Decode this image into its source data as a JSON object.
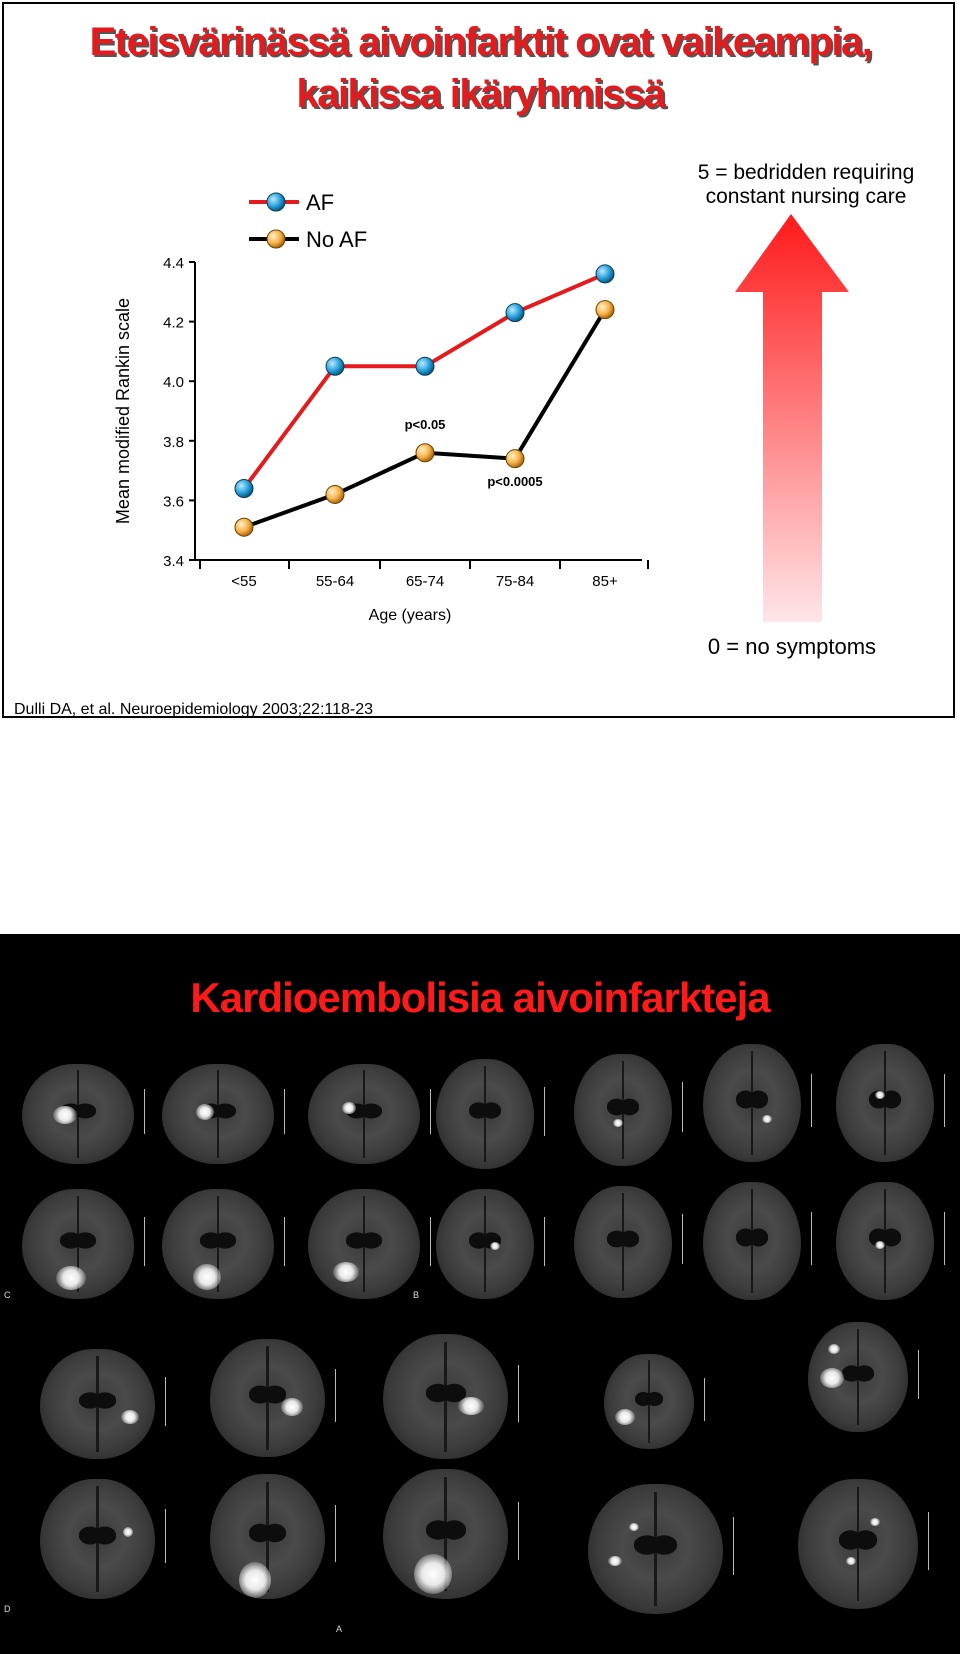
{
  "slide1": {
    "title_line1": "Eteisvärinässä aivoinfarktit ovat vaikeampia,",
    "title_line2": "kaikissa ikäryhmissä",
    "scale_top_line1": "5 = bedridden requiring",
    "scale_top_line2": "constant nursing care",
    "scale_bottom": "0 = no symptoms",
    "citation": "Dulli DA, et al. Neuroepidemiology 2003;22:118-23"
  },
  "chart_data": {
    "type": "line",
    "categories": [
      "<55",
      "55-64",
      "65-74",
      "75-84",
      "85+"
    ],
    "series": [
      {
        "name": "AF",
        "values": [
          3.64,
          4.05,
          4.05,
          4.23,
          4.36
        ],
        "color": "#e41a1c",
        "marker_color": "#29a3dc"
      },
      {
        "name": "No AF",
        "values": [
          3.51,
          3.62,
          3.76,
          3.74,
          4.24
        ],
        "color": "#000000",
        "marker_color": "#f7b34a"
      }
    ],
    "xlabel": "Age (years)",
    "ylabel": "Mean modified Rankin scale",
    "ylim": [
      3.4,
      4.4
    ],
    "yticks": [
      "3.4",
      "3.6",
      "3.8",
      "4.0",
      "4.2",
      "4.4"
    ],
    "annotations": [
      {
        "text": "p<0.05",
        "category": "65-74"
      },
      {
        "text": "p<0.0005",
        "category": "75-84"
      }
    ],
    "legend_position": "top-left",
    "grid": false
  },
  "slide2": {
    "title": "Kardioembolisia aivoinfarkteja",
    "panel_letters": [
      "C",
      "B",
      "D",
      "A"
    ]
  }
}
